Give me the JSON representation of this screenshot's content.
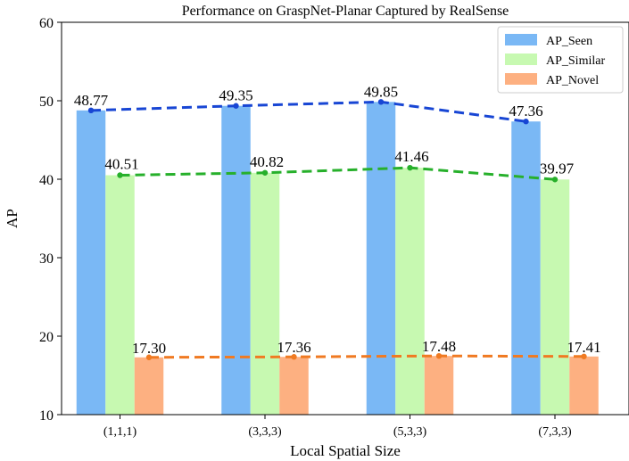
{
  "chart_data": {
    "type": "bar",
    "title": "Performance on GraspNet-Planar Captured by RealSense",
    "xlabel": "Local Spatial Size",
    "ylabel": "AP",
    "ylim": [
      10,
      60
    ],
    "yticks": [
      10,
      20,
      30,
      40,
      50,
      60
    ],
    "categories": [
      "(1,1,1)",
      "(3,3,3)",
      "(5,3,3)",
      "(7,3,3)"
    ],
    "series": [
      {
        "name": "AP_Seen",
        "values": [
          48.77,
          49.35,
          49.85,
          47.36
        ],
        "labels": [
          "48.77",
          "49.35",
          "49.85",
          "47.36"
        ],
        "bar_color": "#7ab8f5",
        "line_color": "#1846d4"
      },
      {
        "name": "AP_Similar",
        "values": [
          40.51,
          40.82,
          41.46,
          39.97
        ],
        "labels": [
          "40.51",
          "40.82",
          "41.46",
          "39.97"
        ],
        "bar_color": "#c7f9b1",
        "line_color": "#27b02b"
      },
      {
        "name": "AP_Novel",
        "values": [
          17.3,
          17.36,
          17.48,
          17.41
        ],
        "labels": [
          "17.30",
          "17.36",
          "17.48",
          "17.41"
        ],
        "bar_color": "#fdb081",
        "line_color": "#f07a22"
      }
    ],
    "overlay": "dashed line through bar tops for each series",
    "legend_position": "top-right",
    "grid": false
  }
}
